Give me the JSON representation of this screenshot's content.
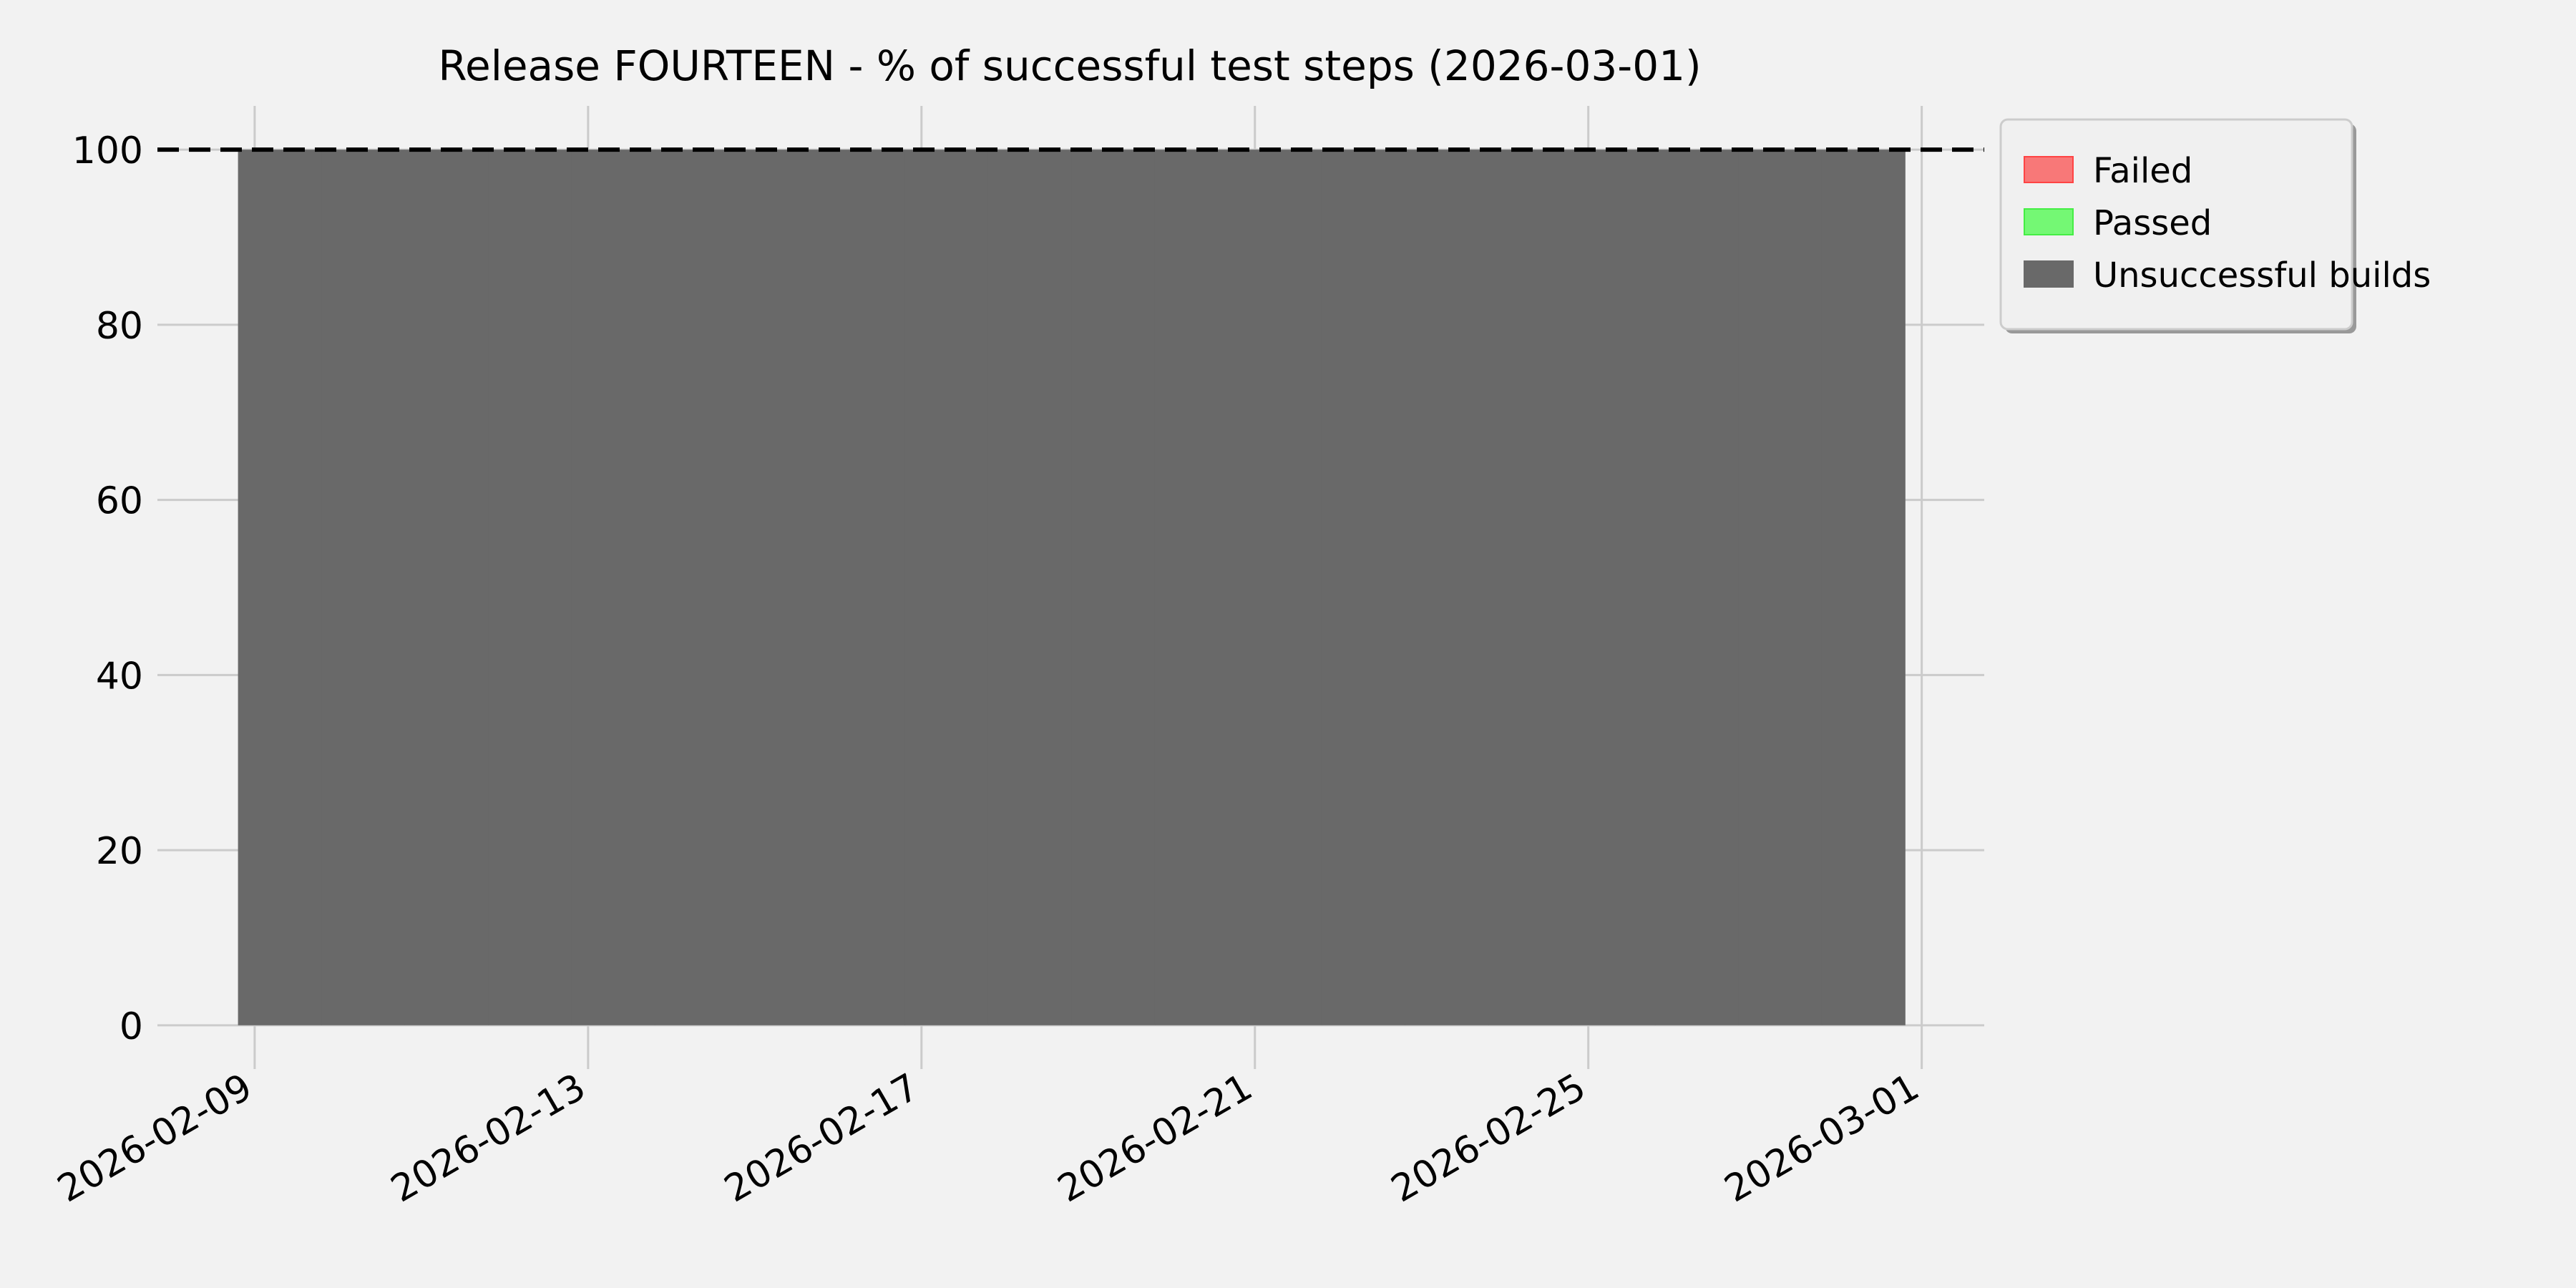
{
  "chart_data": {
    "type": "bar",
    "stacked": true,
    "title": "Release FOURTEEN - % of successful test steps (2026-03-01)",
    "xlabel": "",
    "ylabel": "",
    "x_axis_type": "date",
    "xlim": [
      "2026-02-07T20:00",
      "2026-03-01T18:00"
    ],
    "ylim": [
      -5,
      105
    ],
    "grid": true,
    "reference_line": {
      "y": 100,
      "style": "dashed",
      "color": "#000000"
    },
    "x_ticks": [
      "2026-02-09",
      "2026-02-13",
      "2026-02-17",
      "2026-02-21",
      "2026-02-25",
      "2026-03-01"
    ],
    "y_ticks": [
      0,
      20,
      40,
      60,
      80,
      100
    ],
    "x": [
      "2026-02-09",
      "2026-02-10",
      "2026-02-11",
      "2026-02-12",
      "2026-02-13",
      "2026-02-14",
      "2026-02-15",
      "2026-02-16",
      "2026-02-17",
      "2026-02-18",
      "2026-02-19",
      "2026-02-20",
      "2026-02-21",
      "2026-02-22",
      "2026-02-23",
      "2026-02-24",
      "2026-02-25",
      "2026-02-26",
      "2026-02-27",
      "2026-02-28"
    ],
    "series": [
      {
        "name": "Failed",
        "color": "#f87878",
        "edge": "#ff4444",
        "values": [
          0,
          0,
          0,
          0,
          0,
          0,
          0,
          0,
          0,
          0,
          0,
          0,
          0,
          0,
          0,
          0,
          0,
          0,
          0,
          0
        ]
      },
      {
        "name": "Passed",
        "color": "#74f874",
        "edge": "#44ee44",
        "values": [
          0,
          0,
          0,
          0,
          0,
          0,
          0,
          0,
          0,
          0,
          0,
          0,
          0,
          0,
          0,
          0,
          0,
          0,
          0,
          0
        ]
      },
      {
        "name": "Unsuccessful builds",
        "color": "#696969",
        "edge": "#696969",
        "values": [
          100,
          100,
          100,
          100,
          100,
          100,
          100,
          100,
          100,
          100,
          100,
          100,
          100,
          100,
          100,
          100,
          100,
          100,
          100,
          100
        ]
      }
    ],
    "legend_position": "outside-top-right"
  }
}
